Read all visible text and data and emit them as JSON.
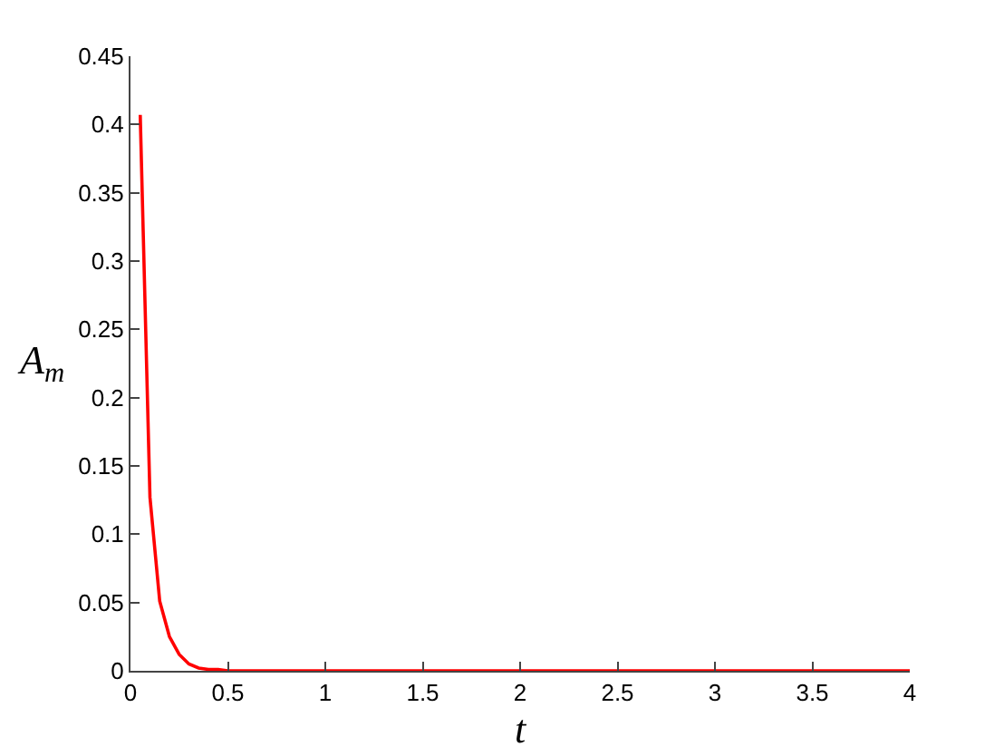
{
  "chart_data": {
    "type": "line",
    "xlabel": "t",
    "ylabel": "A$_{m}$",
    "x": [
      0.05,
      0.1,
      0.15,
      0.2,
      0.25,
      0.3,
      0.35,
      0.4,
      0.45,
      0.5,
      0.6,
      0.8,
      1,
      1.5,
      2,
      2.5,
      3,
      3.5,
      4
    ],
    "series": [
      {
        "color": "#ff0000",
        "values": [
          0.407,
          0.127,
          0.051,
          0.025,
          0.012,
          0.005,
          0.002,
          0.001,
          0.001,
          0,
          0,
          0,
          0,
          0,
          0,
          0,
          0,
          0,
          0
        ]
      }
    ],
    "xlim": [
      0,
      4
    ],
    "xticks": [
      0,
      0.5,
      1,
      1.5,
      2,
      2.5,
      3,
      3.5,
      4
    ],
    "ylim": [
      0,
      0.45
    ],
    "yticks": [
      0,
      0.05,
      0.1,
      0.15,
      0.2,
      0.25,
      0.3,
      0.35,
      0.4,
      0.45
    ],
    "grid": false,
    "marker": "none",
    "line_style": "solid"
  }
}
